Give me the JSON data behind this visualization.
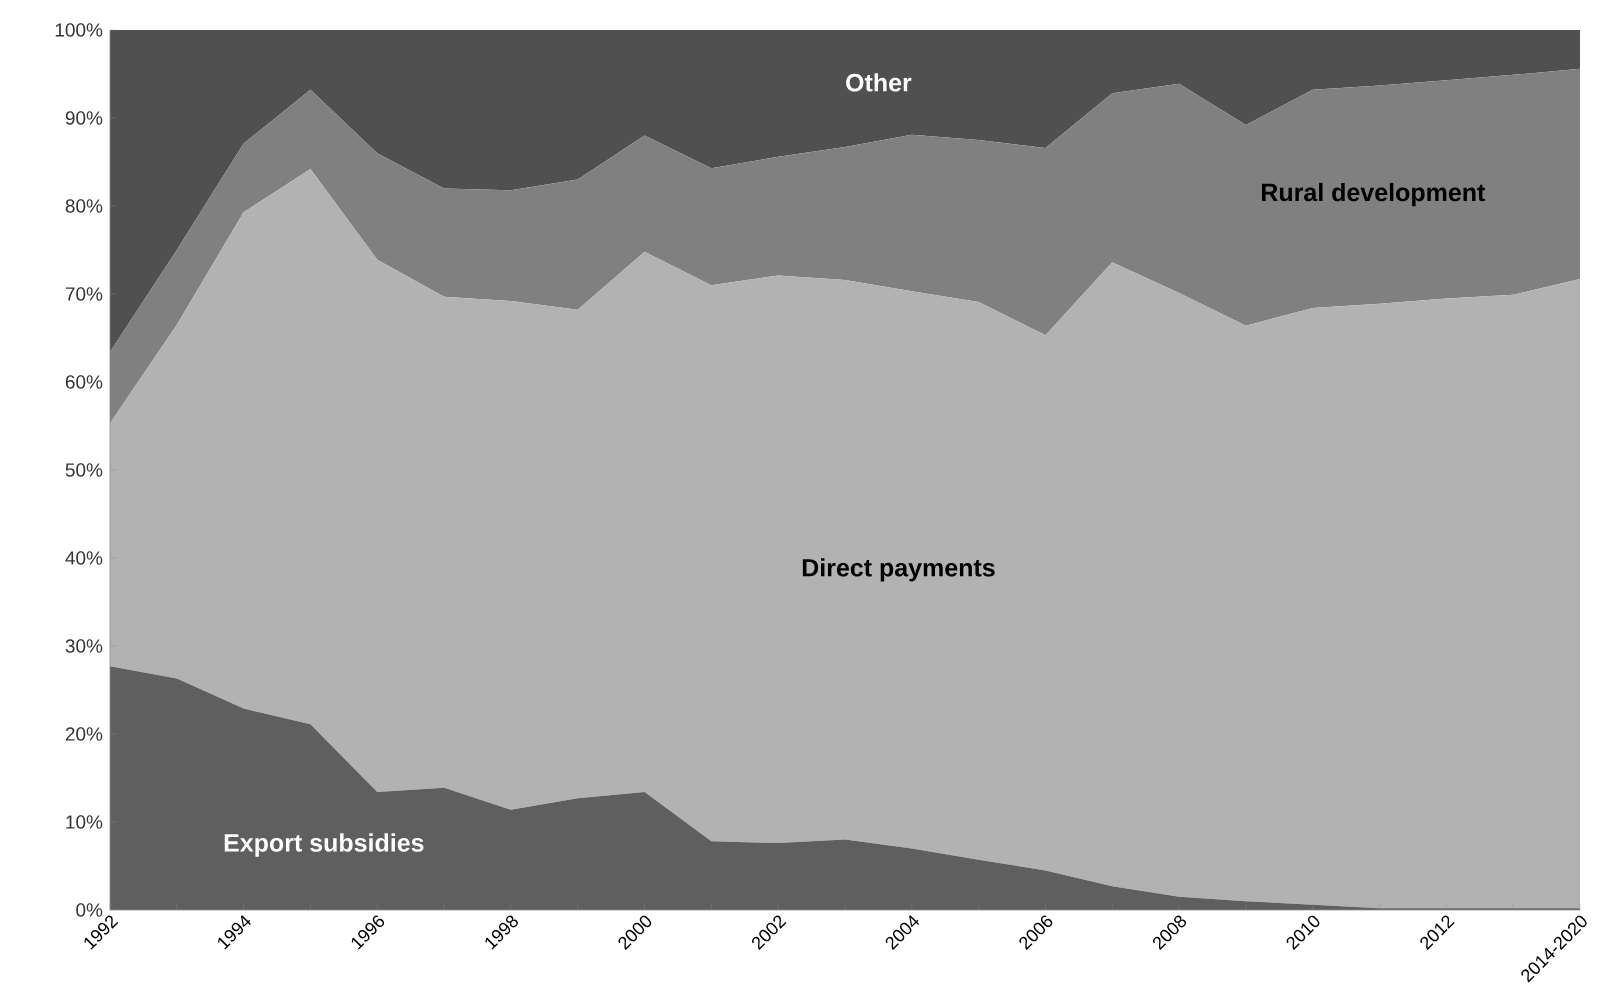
{
  "chart_data": {
    "type": "area",
    "stacked": true,
    "categories": [
      "1992",
      null,
      "1994",
      null,
      "1996",
      null,
      "1998",
      null,
      "2000",
      null,
      "2002",
      null,
      "2004",
      null,
      "2006",
      null,
      "2008",
      null,
      "2010",
      null,
      "2012",
      null,
      "2014-2020"
    ],
    "series": [
      {
        "name": "Export subsidies",
        "color": "#5f5f5f",
        "values": [
          27.7,
          26.3,
          22.9,
          21.1,
          13.4,
          13.9,
          11.4,
          12.7,
          13.4,
          7.8,
          7.6,
          8.0,
          7.0,
          5.7,
          4.5,
          2.7,
          1.5,
          1.0,
          0.6,
          0.2,
          0.2,
          0.2,
          0.2
        ]
      },
      {
        "name": "Direct payments",
        "color": "#b2b2b2",
        "values": [
          27.6,
          40.2,
          56.4,
          63.1,
          60.5,
          55.8,
          57.8,
          55.5,
          61.4,
          63.2,
          64.5,
          63.6,
          63.3,
          63.4,
          60.8,
          70.9,
          68.6,
          65.4,
          67.8,
          68.7,
          69.3,
          69.7,
          71.5
        ]
      },
      {
        "name": "Rural development",
        "color": "#808080",
        "values": [
          8.1,
          8.5,
          7.8,
          9.0,
          12.1,
          12.3,
          12.6,
          14.8,
          13.2,
          13.3,
          13.5,
          15.1,
          17.8,
          18.4,
          21.3,
          19.2,
          23.8,
          22.8,
          24.8,
          24.8,
          24.8,
          25.0,
          23.9
        ]
      },
      {
        "name": "Other",
        "color": "#505050",
        "values": [
          36.6,
          25.0,
          12.9,
          6.8,
          14.0,
          18.0,
          18.2,
          17.0,
          12.0,
          15.7,
          14.4,
          13.3,
          11.9,
          12.5,
          13.4,
          7.2,
          6.1,
          10.8,
          6.8,
          6.3,
          5.7,
          5.1,
          4.4
        ]
      }
    ],
    "ylim": [
      0,
      100
    ],
    "yticks": [
      {
        "value": 0,
        "label": "0%"
      },
      {
        "value": 10,
        "label": "10%"
      },
      {
        "value": 20,
        "label": "20%"
      },
      {
        "value": 30,
        "label": "30%"
      },
      {
        "value": 40,
        "label": "40%"
      },
      {
        "value": 50,
        "label": "50%"
      },
      {
        "value": 60,
        "label": "60%"
      },
      {
        "value": 70,
        "label": "70%"
      },
      {
        "value": 80,
        "label": "80%"
      },
      {
        "value": 90,
        "label": "90%"
      },
      {
        "value": 100,
        "label": "100%"
      }
    ]
  }
}
